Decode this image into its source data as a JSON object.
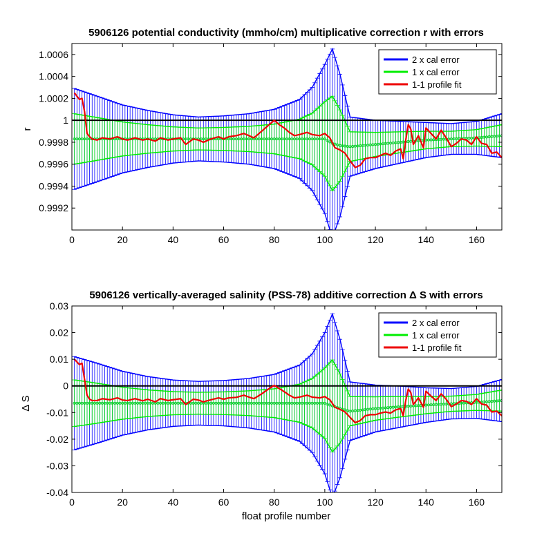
{
  "chart_data": [
    {
      "type": "line",
      "title": "5906126 potential conductivity (mmho/cm) multiplicative correction r with errors",
      "xlabel": "",
      "ylabel": "r",
      "xlim": [
        0,
        170
      ],
      "ylim": [
        0.999,
        1.0007
      ],
      "xticks": [
        0,
        20,
        40,
        60,
        80,
        100,
        120,
        140,
        160
      ],
      "xtick_labels": [
        "0",
        "20",
        "40",
        "60",
        "80",
        "100",
        "120",
        "140",
        "160"
      ],
      "yticks": [
        0.9992,
        0.9994,
        0.9996,
        0.9998,
        1.0,
        1.0002,
        1.0004,
        1.0006
      ],
      "ytick_labels": [
        "0.9992",
        "0.9994",
        "0.9996",
        "0.9998",
        "1",
        "1.0002",
        "1.0004",
        "1.0006"
      ],
      "grid": false,
      "legend_position": "top-right",
      "legend": [
        "2 x cal error",
        "1 x cal error",
        "1-1 profile fit"
      ],
      "reference_line": 1.0,
      "series": [
        {
          "name": "2 x cal error",
          "color": "#0000ff",
          "kind": "errorbar",
          "x": [
            1,
            10,
            20,
            30,
            40,
            50,
            60,
            70,
            80,
            90,
            95,
            100,
            103,
            106,
            110,
            120,
            130,
            140,
            150,
            160,
            170
          ],
          "center": [
            0.99983,
            0.99983,
            0.99983,
            0.99983,
            0.99983,
            0.99983,
            0.99983,
            0.99983,
            0.99983,
            0.99983,
            0.99983,
            0.99983,
            0.99979,
            0.99977,
            0.99976,
            0.99978,
            0.9998,
            0.99982,
            0.99983,
            0.99984,
            0.99986
          ],
          "error": [
            0.00046,
            0.00039,
            0.00031,
            0.00026,
            0.00022,
            0.0002,
            0.00021,
            0.00023,
            0.00027,
            0.00036,
            0.00047,
            0.00068,
            0.00086,
            0.00065,
            0.00027,
            0.00022,
            0.00019,
            0.00016,
            0.00014,
            0.00015,
            0.0002
          ]
        },
        {
          "name": "1 x cal error",
          "color": "#00ee00",
          "kind": "errorbar",
          "x": [
            1,
            10,
            20,
            30,
            40,
            50,
            60,
            70,
            80,
            90,
            95,
            100,
            103,
            106,
            110,
            120,
            130,
            140,
            150,
            160,
            170
          ],
          "center": [
            0.99983,
            0.99983,
            0.99983,
            0.99983,
            0.99983,
            0.99983,
            0.99983,
            0.99983,
            0.99983,
            0.99983,
            0.99983,
            0.99983,
            0.99979,
            0.99977,
            0.99976,
            0.99978,
            0.9998,
            0.99982,
            0.99983,
            0.99984,
            0.99986
          ],
          "error": [
            0.00023,
            0.000195,
            0.000155,
            0.00013,
            0.00011,
            0.0001,
            0.000105,
            0.000115,
            0.000135,
            0.00018,
            0.000235,
            0.00034,
            0.00043,
            0.000325,
            0.000135,
            0.00011,
            9.5e-05,
            8e-05,
            7e-05,
            7.5e-05,
            0.0001
          ]
        },
        {
          "name": "1-1 profile fit",
          "color": "#ee0000",
          "kind": "line",
          "x": [
            1,
            2,
            3,
            4,
            5,
            6,
            7,
            8,
            10,
            12,
            15,
            18,
            20,
            22,
            25,
            28,
            30,
            33,
            35,
            38,
            40,
            43,
            45,
            48,
            50,
            52,
            55,
            58,
            60,
            62,
            65,
            68,
            70,
            72,
            75,
            78,
            80,
            82,
            84,
            86,
            88,
            90,
            93,
            95,
            98,
            100,
            102,
            104,
            106,
            108,
            110,
            112,
            114,
            116,
            118,
            120,
            122,
            124,
            126,
            128,
            130,
            131,
            132,
            133,
            134,
            135,
            137,
            139,
            140,
            142,
            144,
            146,
            148,
            150,
            152,
            154,
            156,
            158,
            160,
            162,
            164,
            166,
            168,
            170
          ],
          "y": [
            1.00025,
            1.00022,
            1.00019,
            1.0002,
            1.00008,
            0.99988,
            0.99985,
            0.99983,
            0.99982,
            0.99984,
            0.99983,
            0.99985,
            0.99983,
            0.99982,
            0.99984,
            0.99982,
            0.99983,
            0.99981,
            0.99984,
            0.99982,
            0.99983,
            0.99984,
            0.99978,
            0.99983,
            0.99982,
            0.9998,
            0.99983,
            0.99985,
            0.99983,
            0.99985,
            0.99986,
            0.99988,
            0.99986,
            0.99984,
            0.9999,
            0.99996,
            1.0,
            0.99996,
            0.99993,
            0.99989,
            0.99986,
            0.99987,
            0.99989,
            0.99987,
            0.99986,
            0.99988,
            0.99984,
            0.99975,
            0.99973,
            0.9997,
            0.99963,
            0.99957,
            0.99959,
            0.99965,
            0.99966,
            0.99966,
            0.99968,
            0.9997,
            0.99968,
            0.99972,
            0.99974,
            0.99965,
            0.99982,
            0.99996,
            0.99992,
            0.99978,
            0.99986,
            0.99975,
            0.99993,
            0.99988,
            0.99983,
            0.99991,
            0.99984,
            0.99976,
            0.99979,
            0.99983,
            0.99982,
            0.99978,
            0.99985,
            0.99979,
            0.99978,
            0.9997,
            0.99971,
            0.99966
          ]
        }
      ]
    },
    {
      "type": "line",
      "title": "5906126 vertically-averaged salinity (PSS-78) additive correction Δ S with errors",
      "xlabel": "float profile number",
      "ylabel": "Δ S",
      "xlim": [
        0,
        170
      ],
      "ylim": [
        -0.04,
        0.03
      ],
      "xticks": [
        0,
        20,
        40,
        60,
        80,
        100,
        120,
        140,
        160
      ],
      "xtick_labels": [
        "0",
        "20",
        "40",
        "60",
        "80",
        "100",
        "120",
        "140",
        "160"
      ],
      "yticks": [
        -0.04,
        -0.03,
        -0.02,
        -0.01,
        0,
        0.01,
        0.02,
        0.03
      ],
      "ytick_labels": [
        "-0.04",
        "-0.03",
        "-0.02",
        "-0.01",
        "0",
        "0.01",
        "0.02",
        "0.03"
      ],
      "grid": false,
      "legend_position": "top-right",
      "legend": [
        "2 x cal error",
        "1 x cal error",
        "1-1 profile fit"
      ],
      "reference_line": 0,
      "series": [
        {
          "name": "2 x cal error",
          "color": "#0000ff",
          "kind": "errorbar",
          "x": [
            1,
            10,
            20,
            30,
            40,
            50,
            60,
            70,
            80,
            90,
            95,
            100,
            103,
            106,
            110,
            120,
            130,
            140,
            150,
            160,
            170
          ],
          "center": [
            -0.0065,
            -0.0065,
            -0.0065,
            -0.0065,
            -0.0065,
            -0.0065,
            -0.0065,
            -0.0065,
            -0.0065,
            -0.0065,
            -0.0065,
            -0.0065,
            -0.0075,
            -0.0085,
            -0.0095,
            -0.0085,
            -0.0078,
            -0.0072,
            -0.0067,
            -0.0062,
            -0.0055
          ],
          "error": [
            0.0175,
            0.015,
            0.012,
            0.01,
            0.0087,
            0.0082,
            0.0085,
            0.0093,
            0.0108,
            0.0143,
            0.0185,
            0.0265,
            0.0345,
            0.026,
            0.011,
            0.0088,
            0.0077,
            0.0065,
            0.0057,
            0.006,
            0.0079
          ]
        },
        {
          "name": "1 x cal error",
          "color": "#00ee00",
          "kind": "errorbar",
          "x": [
            1,
            10,
            20,
            30,
            40,
            50,
            60,
            70,
            80,
            90,
            95,
            100,
            103,
            106,
            110,
            120,
            130,
            140,
            150,
            160,
            170
          ],
          "center": [
            -0.0065,
            -0.0065,
            -0.0065,
            -0.0065,
            -0.0065,
            -0.0065,
            -0.0065,
            -0.0065,
            -0.0065,
            -0.0065,
            -0.0065,
            -0.0065,
            -0.0075,
            -0.0085,
            -0.0095,
            -0.0085,
            -0.0078,
            -0.0072,
            -0.0067,
            -0.0062,
            -0.0055
          ],
          "error": [
            0.00875,
            0.0075,
            0.006,
            0.005,
            0.00435,
            0.0041,
            0.00425,
            0.00465,
            0.0054,
            0.00715,
            0.00925,
            0.01325,
            0.01725,
            0.013,
            0.0055,
            0.0044,
            0.00385,
            0.00325,
            0.00285,
            0.003,
            0.00395
          ]
        },
        {
          "name": "1-1 profile fit",
          "color": "#ee0000",
          "kind": "line",
          "x": [
            1,
            2,
            3,
            4,
            5,
            6,
            7,
            8,
            10,
            12,
            15,
            18,
            20,
            22,
            25,
            28,
            30,
            33,
            35,
            38,
            40,
            43,
            45,
            48,
            50,
            52,
            55,
            58,
            60,
            62,
            65,
            68,
            70,
            72,
            75,
            78,
            80,
            82,
            84,
            86,
            88,
            90,
            93,
            95,
            98,
            100,
            102,
            104,
            106,
            108,
            110,
            112,
            114,
            116,
            118,
            120,
            122,
            124,
            126,
            128,
            130,
            131,
            132,
            133,
            134,
            135,
            137,
            139,
            140,
            142,
            144,
            146,
            148,
            150,
            152,
            154,
            156,
            158,
            160,
            162,
            164,
            166,
            168,
            170
          ],
          "y": [
            0.01,
            0.009,
            0.008,
            0.0085,
            0.0025,
            -0.0035,
            -0.005,
            -0.0055,
            -0.0055,
            -0.0048,
            -0.0052,
            -0.0045,
            -0.0053,
            -0.0055,
            -0.0048,
            -0.0056,
            -0.005,
            -0.006,
            -0.0048,
            -0.0055,
            -0.0052,
            -0.0048,
            -0.007,
            -0.005,
            -0.0053,
            -0.006,
            -0.0052,
            -0.0045,
            -0.005,
            -0.0045,
            -0.0043,
            -0.0035,
            -0.0042,
            -0.0048,
            -0.003,
            -0.001,
            0.0002,
            -0.001,
            -0.0022,
            -0.0035,
            -0.0045,
            -0.0042,
            -0.0035,
            -0.0042,
            -0.0045,
            -0.004,
            -0.0052,
            -0.008,
            -0.0088,
            -0.0098,
            -0.0118,
            -0.0138,
            -0.013,
            -0.0112,
            -0.0108,
            -0.0108,
            -0.0102,
            -0.0098,
            -0.0102,
            -0.009,
            -0.0085,
            -0.0112,
            -0.0055,
            -0.0012,
            -0.0025,
            -0.007,
            -0.0045,
            -0.008,
            -0.002,
            -0.0038,
            -0.0055,
            -0.003,
            -0.005,
            -0.0078,
            -0.0068,
            -0.0055,
            -0.0058,
            -0.007,
            -0.0048,
            -0.0068,
            -0.0072,
            -0.0098,
            -0.0095,
            -0.0112
          ]
        }
      ]
    }
  ]
}
